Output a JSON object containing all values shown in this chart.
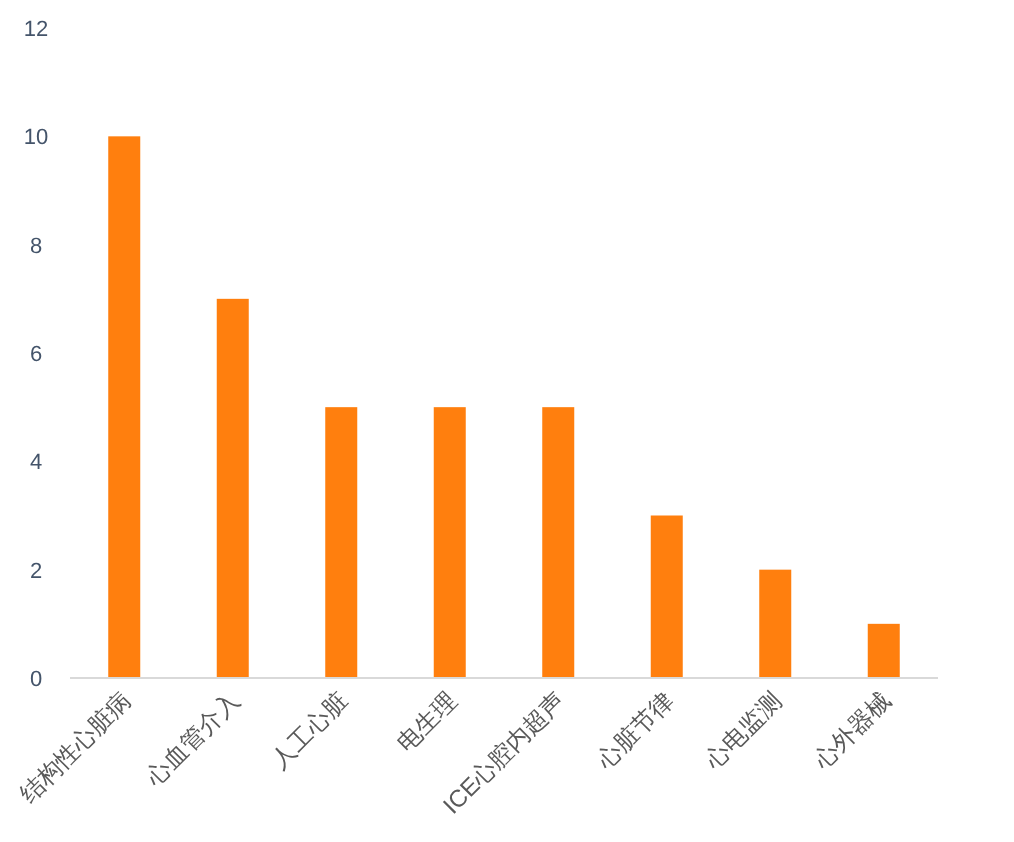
{
  "chart_data": {
    "type": "bar",
    "categories": [
      "结构性心脏病",
      "心血管介入",
      "人工心脏",
      "电生理",
      "ICE心腔内超声",
      "心脏节律",
      "心电监测",
      "心外器械"
    ],
    "values": [
      10,
      7,
      5,
      5,
      5,
      3,
      2,
      1
    ],
    "color": "#ff7f0e",
    "ylim": [
      0,
      12
    ],
    "yticks": [
      0,
      2,
      4,
      6,
      8,
      10,
      12
    ]
  }
}
